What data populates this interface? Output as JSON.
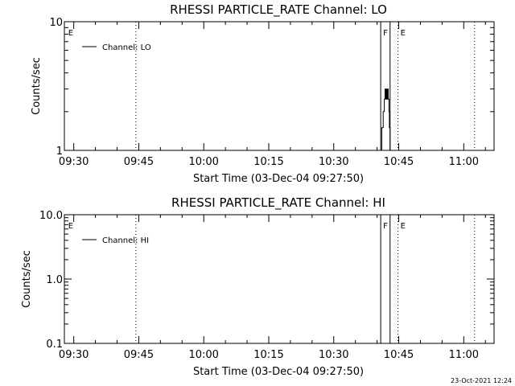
{
  "footer": {
    "timestamp": "23-Oct-2021 12:24"
  },
  "chart_data": [
    {
      "type": "line",
      "title": "RHESSI PARTICLE_RATE Channel: LO",
      "xlabel": "Start Time (03-Dec-04 09:27:50)",
      "ylabel": "Counts/sec",
      "yscale": "log",
      "xlim": [
        "09:27:50",
        "11:07:00"
      ],
      "ylim": [
        1,
        10
      ],
      "x_ticks": [
        "09:30",
        "09:45",
        "10:00",
        "10:15",
        "10:30",
        "10:45",
        "11:00"
      ],
      "y_ticks": [
        "1",
        "10"
      ],
      "legend": {
        "position": "top-left",
        "entries": [
          "Channel: LO"
        ]
      },
      "markers": [
        {
          "label": "E",
          "time": "09:28:10",
          "style": "none"
        },
        {
          "label": "",
          "time": "09:44:20",
          "style": "dotted"
        },
        {
          "label": "F",
          "time": "10:40:50",
          "style": "solid"
        },
        {
          "label": "",
          "time": "10:43:00",
          "style": "solid"
        },
        {
          "label": "E",
          "time": "10:44:50",
          "style": "dotted"
        },
        {
          "label": "",
          "time": "11:02:30",
          "style": "dotted"
        }
      ],
      "series": [
        {
          "x": [
            "10:40:55",
            "10:41:05",
            "10:41:10",
            "10:41:25",
            "10:41:35",
            "10:41:40",
            "10:41:50",
            "10:41:55",
            "10:42:00",
            "10:42:05",
            "10:42:10",
            "10:42:15",
            "10:42:20",
            "10:42:25",
            "10:42:30",
            "10:42:35",
            "10:42:45",
            "10:42:50",
            "10:42:55",
            "10:43:00",
            "10:43:05"
          ],
          "y": [
            1,
            1.5,
            1.5,
            2,
            2,
            2.5,
            3,
            2.5,
            3,
            2.5,
            3,
            2.5,
            3,
            2.5,
            3,
            2.5,
            2,
            1.5,
            1.5,
            1,
            1
          ]
        }
      ]
    },
    {
      "type": "line",
      "title": "RHESSI PARTICLE_RATE Channel: HI",
      "xlabel": "Start Time (03-Dec-04 09:27:50)",
      "ylabel": "Counts/sec",
      "yscale": "log",
      "xlim": [
        "09:27:50",
        "11:07:00"
      ],
      "ylim": [
        0.1,
        10
      ],
      "x_ticks": [
        "09:30",
        "09:45",
        "10:00",
        "10:15",
        "10:30",
        "10:45",
        "11:00"
      ],
      "y_ticks": [
        "0.1",
        "1.0",
        "10.0"
      ],
      "legend": {
        "position": "top-left",
        "entries": [
          "Channel: HI"
        ]
      },
      "markers": [
        {
          "label": "E",
          "time": "09:28:10",
          "style": "none"
        },
        {
          "label": "",
          "time": "09:44:20",
          "style": "dotted"
        },
        {
          "label": "F",
          "time": "10:40:50",
          "style": "solid"
        },
        {
          "label": "",
          "time": "10:43:00",
          "style": "solid"
        },
        {
          "label": "E",
          "time": "10:44:50",
          "style": "dotted"
        },
        {
          "label": "",
          "time": "11:02:30",
          "style": "dotted"
        }
      ],
      "series": []
    }
  ]
}
